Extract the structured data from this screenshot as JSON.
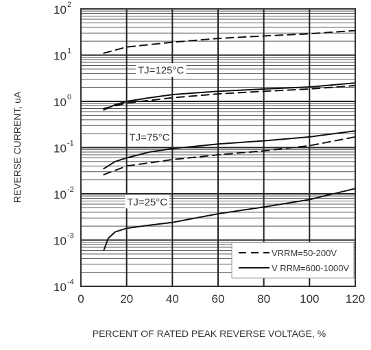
{
  "chart_data": {
    "type": "line",
    "title": "",
    "xlabel": "PERCENT OF RATED PEAK REVERSE VOLTAGE, %",
    "ylabel": "REVERSE CURRENT, uA",
    "xlim": [
      0,
      120
    ],
    "ylim": [
      0.0001,
      100
    ],
    "yscale": "log",
    "grid": true,
    "legend_position": "bottom-right",
    "x_ticks": [
      "0",
      "20",
      "40",
      "60",
      "80",
      "100",
      "120"
    ],
    "y_ticks": [
      {
        "value": 100,
        "base": "10",
        "exp": "2"
      },
      {
        "value": 10,
        "base": "10",
        "exp": "1"
      },
      {
        "value": 1,
        "base": "10",
        "exp": "0"
      },
      {
        "value": 0.1,
        "base": "10",
        "exp": "-1"
      },
      {
        "value": 0.01,
        "base": "10",
        "exp": "-2"
      },
      {
        "value": 0.001,
        "base": "10",
        "exp": "-3"
      },
      {
        "value": 0.0001,
        "base": "10",
        "exp": "-4"
      }
    ],
    "annotations": [
      {
        "text": "TJ=125°C",
        "x": 35,
        "y": 4.8
      },
      {
        "text": "TJ=75°C",
        "x": 30,
        "y": 0.17
      },
      {
        "text": "TJ=25°C",
        "x": 29,
        "y": 0.0068
      }
    ],
    "legend": [
      {
        "label": "VRRM=50-200V",
        "style": "dashed"
      },
      {
        "label": "V RRM=600-1000V",
        "style": "solid"
      }
    ],
    "series": [
      {
        "name": "VRRM=50-200V",
        "style": "dashed",
        "group": "TJ=125°C",
        "x": [
          10,
          20,
          40,
          60,
          80,
          100,
          120
        ],
        "y": [
          11,
          15,
          19,
          23,
          26,
          29,
          34
        ]
      },
      {
        "name": "V RRM=600-1000V",
        "style": "solid",
        "group": "TJ=125°C",
        "x": [
          10,
          15,
          20,
          30,
          40,
          60,
          80,
          100,
          120
        ],
        "y": [
          0.65,
          0.85,
          1.0,
          1.2,
          1.4,
          1.65,
          1.85,
          2.05,
          2.5
        ]
      },
      {
        "name": "VRRM=50-200V",
        "style": "dashed",
        "group": "TJ=125°C",
        "x": [
          10,
          20,
          40,
          60,
          80,
          100,
          120
        ],
        "y": [
          0.7,
          0.92,
          1.2,
          1.45,
          1.65,
          1.85,
          2.2
        ]
      },
      {
        "name": "V RRM=600-1000V",
        "style": "solid",
        "group": "TJ=75°C",
        "x": [
          10,
          15,
          20,
          30,
          40,
          60,
          80,
          100,
          120
        ],
        "y": [
          0.035,
          0.05,
          0.06,
          0.08,
          0.095,
          0.12,
          0.14,
          0.17,
          0.23
        ]
      },
      {
        "name": "VRRM=50-200V",
        "style": "dashed",
        "group": "TJ=75°C",
        "x": [
          10,
          20,
          40,
          60,
          80,
          100,
          120
        ],
        "y": [
          0.026,
          0.04,
          0.055,
          0.07,
          0.085,
          0.11,
          0.17
        ]
      },
      {
        "name": "V RRM=600-1000V",
        "style": "solid",
        "group": "TJ=25°C",
        "x": [
          10,
          12,
          15,
          20,
          30,
          40,
          60,
          80,
          100,
          120
        ],
        "y": [
          0.0006,
          0.0011,
          0.0015,
          0.0018,
          0.0021,
          0.0024,
          0.0037,
          0.0052,
          0.0075,
          0.013
        ]
      }
    ]
  }
}
